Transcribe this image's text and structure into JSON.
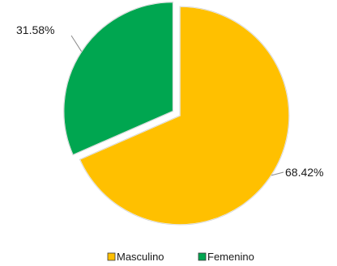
{
  "chart_data": {
    "type": "pie",
    "title": "",
    "categories": [
      "Masculino",
      "Femenino"
    ],
    "values": [
      68.42,
      31.58
    ],
    "data_labels": [
      "68.42%",
      "31.58%"
    ],
    "colors": [
      "#FFC000",
      "#00A650"
    ],
    "exploded_slice": "Femenino",
    "legend_position": "bottom"
  }
}
